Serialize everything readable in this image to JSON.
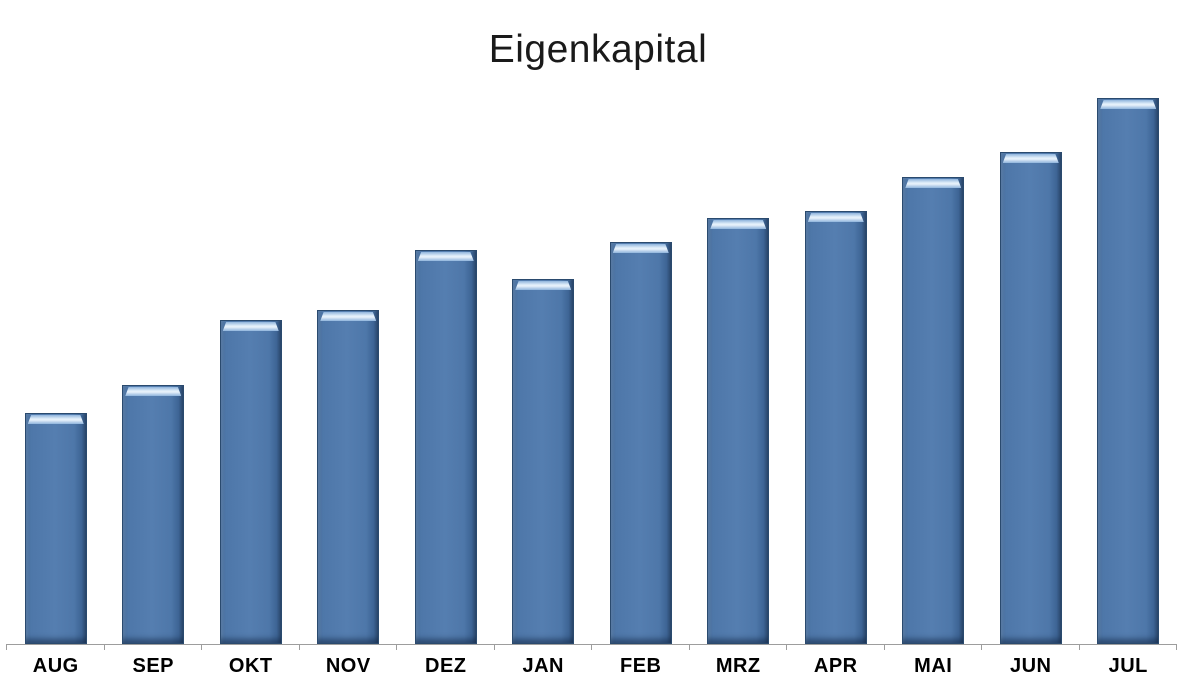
{
  "chart_data": {
    "type": "bar",
    "title": "Eigenkapital",
    "categories": [
      "AUG",
      "SEP",
      "OKT",
      "NOV",
      "DEZ",
      "JAN",
      "FEB",
      "MRZ",
      "APR",
      "MAI",
      "JUN",
      "JUL"
    ],
    "values": [
      231,
      259,
      324,
      334,
      394,
      365,
      402,
      426,
      433,
      467,
      492,
      546
    ],
    "value_unit": "relative-pixel-height",
    "xlabel": "",
    "ylabel": "",
    "ylim": [
      0,
      556
    ],
    "value_axis_visible": false,
    "gridlines": false,
    "legend_position": "none",
    "bar_style": "beveled-3d"
  },
  "colors": {
    "background": "#ffffff",
    "bar_fill": "#4e77a9",
    "bar_fill_edge_dark": "#2c486c",
    "bar_border": "#2a4a6e",
    "bar_top_highlight": "#dcebf8",
    "axis_line": "#9d9d9d",
    "title_text": "#1a1a1a",
    "label_text": "#000000"
  }
}
